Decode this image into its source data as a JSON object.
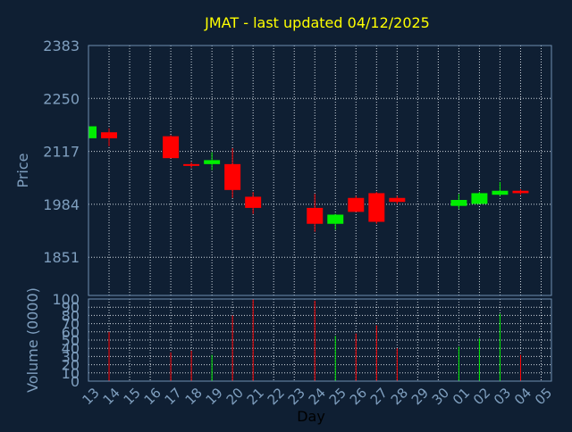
{
  "chart_data": {
    "type": "candlestick",
    "title": "JMAT - last updated 04/12/2025",
    "xlabel": "Day",
    "price_panel": {
      "ylabel": "Price",
      "yticks": [
        1851,
        1984,
        2117,
        2250,
        2383
      ],
      "ylim": [
        1755,
        2383
      ]
    },
    "volume_panel": {
      "ylabel": "Volume (0000)",
      "yticks": [
        0,
        10,
        20,
        30,
        40,
        50,
        60,
        70,
        80,
        90,
        100
      ],
      "ylim": [
        0,
        100
      ]
    },
    "days": [
      "13",
      "14",
      "15",
      "16",
      "17",
      "18",
      "19",
      "20",
      "21",
      "22",
      "23",
      "24",
      "25",
      "26",
      "27",
      "28",
      "29",
      "30",
      "01",
      "02",
      "03",
      "04",
      "05"
    ],
    "candles": [
      {
        "day": "13",
        "open": 2150,
        "high": 2185,
        "low": 2145,
        "close": 2180,
        "volume": 25,
        "direction": "up"
      },
      {
        "day": "14",
        "open": 2165,
        "high": 2175,
        "low": 2130,
        "close": 2150,
        "volume": 60,
        "direction": "down"
      },
      {
        "day": "17",
        "open": 2155,
        "high": 2158,
        "low": 2100,
        "close": 2100,
        "volume": 35,
        "direction": "down"
      },
      {
        "day": "18",
        "open": 2085,
        "high": 2090,
        "low": 2075,
        "close": 2082,
        "volume": 37,
        "direction": "down"
      },
      {
        "day": "19",
        "open": 2085,
        "high": 2115,
        "low": 2070,
        "close": 2095,
        "volume": 32,
        "direction": "up"
      },
      {
        "day": "20",
        "open": 2085,
        "high": 2125,
        "low": 2000,
        "close": 2020,
        "volume": 80,
        "direction": "down"
      },
      {
        "day": "21",
        "open": 2003,
        "high": 2015,
        "low": 1960,
        "close": 1975,
        "volume": 100,
        "direction": "down"
      },
      {
        "day": "24",
        "open": 1975,
        "high": 2010,
        "low": 1915,
        "close": 1935,
        "volume": 98,
        "direction": "down"
      },
      {
        "day": "25",
        "open": 1935,
        "high": 1960,
        "low": 1920,
        "close": 1958,
        "volume": 55,
        "direction": "up"
      },
      {
        "day": "26",
        "open": 2000,
        "high": 2005,
        "low": 1965,
        "close": 1965,
        "volume": 58,
        "direction": "down"
      },
      {
        "day": "27",
        "open": 2012,
        "high": 2015,
        "low": 1935,
        "close": 1940,
        "volume": 68,
        "direction": "down"
      },
      {
        "day": "28",
        "open": 2000,
        "high": 2005,
        "low": 1985,
        "close": 1990,
        "volume": 40,
        "direction": "down"
      },
      {
        "day": "01",
        "open": 1980,
        "high": 2010,
        "low": 1972,
        "close": 1995,
        "volume": 42,
        "direction": "up"
      },
      {
        "day": "02",
        "open": 1985,
        "high": 2015,
        "low": 1985,
        "close": 2012,
        "volume": 52,
        "direction": "up"
      },
      {
        "day": "03",
        "open": 2008,
        "high": 2040,
        "low": 2005,
        "close": 2018,
        "volume": 82,
        "direction": "up"
      },
      {
        "day": "04",
        "open": 2018,
        "high": 2022,
        "low": 2008,
        "close": 2012,
        "volume": 32,
        "direction": "down"
      }
    ],
    "colors": {
      "background": "#0f1f33",
      "plot_border": "#6f8fb0",
      "grid": "#d0d8e0",
      "title": "#ffff00",
      "axis_text": "#7f9fbf",
      "up": "#00ee00",
      "down": "#ff0000",
      "xlabel": "#000000"
    },
    "grid": true
  }
}
